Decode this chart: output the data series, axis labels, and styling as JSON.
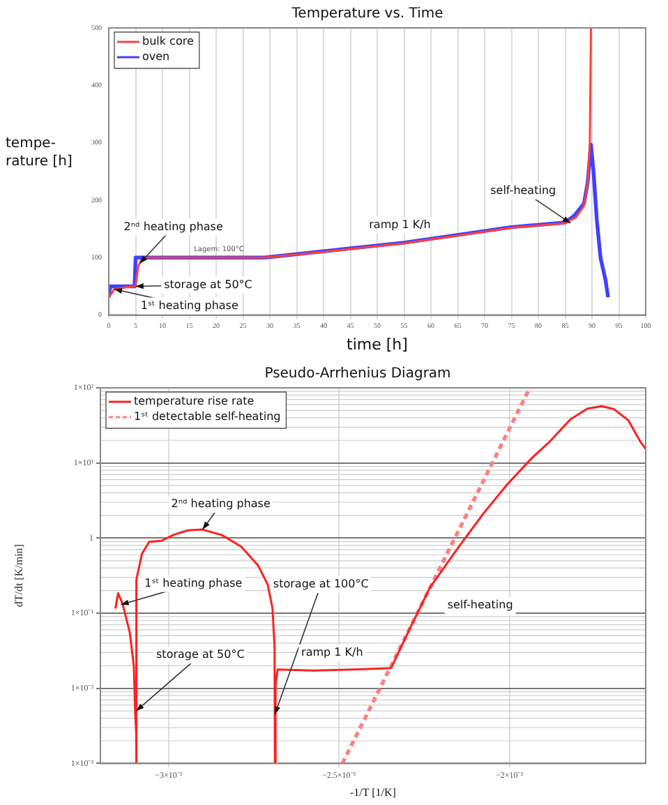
{
  "chart_data": [
    {
      "type": "line",
      "title": "Temperature vs. Time",
      "xlabel": "time [h]",
      "ylabel": "tempe-\nrature [h]",
      "xlim": [
        0,
        100
      ],
      "xticks": [
        0,
        5,
        10,
        15,
        20,
        25,
        30,
        35,
        40,
        45,
        50,
        55,
        60,
        65,
        70,
        75,
        80,
        85,
        90,
        95,
        100
      ],
      "ylim": [
        0,
        500
      ],
      "yticks": [
        0,
        100,
        200,
        300,
        400,
        500
      ],
      "grid": "x",
      "legend": "top left",
      "marker": "none",
      "series": [
        {
          "name": "bulk core",
          "color": "#ff4040",
          "x": [
            0,
            1,
            3,
            4.8,
            5,
            5.5,
            6,
            7,
            29,
            40,
            55,
            75,
            85,
            87,
            88.5,
            89.2,
            89.6,
            89.8
          ],
          "values": [
            30,
            45,
            48,
            50,
            50,
            85,
            95,
            100,
            100,
            110,
            125,
            152,
            160,
            170,
            190,
            230,
            300,
            500
          ]
        },
        {
          "name": "oven",
          "color": "#4040ff",
          "x": [
            0,
            0.3,
            4.8,
            5,
            29,
            40,
            55,
            75,
            85,
            86.7,
            88.5,
            89.2,
            89.8,
            90.3,
            90.9,
            91.6,
            92.5,
            93
          ],
          "values": [
            35,
            50,
            50,
            100,
            100,
            111,
            126,
            153,
            161,
            173,
            194,
            231,
            297,
            248,
            165,
            99,
            62,
            31
          ]
        }
      ],
      "annotations": [
        {
          "text": "Lagem: 100°C",
          "x": 20,
          "y": 100
        },
        {
          "text": "2ⁿᵈ heating phase",
          "x": 5.8,
          "y": 90
        },
        {
          "text": "storage at 50°C",
          "x": 5,
          "y": 50
        },
        {
          "text": "1ˢᵗ heating phase",
          "x": 1,
          "y": 45
        },
        {
          "text": "ramp 1 K/h",
          "x": 55,
          "y": 125
        },
        {
          "text": "self-heating",
          "x": 86,
          "y": 160
        }
      ]
    },
    {
      "type": "line",
      "title": "Pseudo-Arrhenius Diagram",
      "xlabel": "-1/T [1/K]",
      "ylabel": "dT/dt [K/min]",
      "log": "y",
      "xlim": [
        -0.0032,
        -0.0016
      ],
      "xticks": [
        {
          "value": -0.003,
          "label": "−3×10⁻³"
        },
        {
          "value": -0.0025,
          "label": "−2.5×10⁻³"
        },
        {
          "value": -0.002,
          "label": "−2×10⁻³"
        }
      ],
      "ylim": [
        0.001,
        100
      ],
      "yticks": [
        {
          "value": 0.001,
          "label": "1×10⁻³"
        },
        {
          "value": 0.01,
          "label": "1×10⁻²"
        },
        {
          "value": 0.1,
          "label": "1×10⁻¹"
        },
        1,
        {
          "value": 10,
          "label": "1×10¹"
        },
        {
          "value": 100,
          "label": "1×10²"
        }
      ],
      "grid": true,
      "legend": "top left",
      "marker": "none",
      "series": [
        {
          "name": "temperature rise rate",
          "color": "#ff2020",
          "x": [
            -0.003156,
            -0.003148,
            -0.003135,
            -0.003114,
            -0.003102,
            -0.003098,
            -0.003095,
            -0.003095,
            -0.003094,
            -0.003078,
            -0.003057,
            -0.003021,
            -0.002986,
            -0.002943,
            -0.002901,
            -0.002844,
            -0.002787,
            -0.002737,
            -0.002709,
            -0.002695,
            -0.002689,
            -0.002688,
            -0.002686,
            -0.00268,
            -0.002574,
            -0.00246,
            -0.002347,
            -0.00229,
            -0.002233,
            -0.002148,
            -0.002077,
            -0.002006,
            -0.001935,
            -0.001885,
            -0.001821,
            -0.001771,
            -0.001729,
            -0.001693,
            -0.001651,
            -0.001615,
            -0.0016
          ],
          "values": [
            0.115,
            0.184,
            0.134,
            0.056,
            0.02,
            0.0046,
            0.0026,
            0.001,
            0.28,
            0.62,
            0.89,
            0.92,
            1.1,
            1.27,
            1.3,
            1.1,
            0.77,
            0.43,
            0.24,
            0.115,
            0.036,
            0.001,
            0.011,
            0.0178,
            0.0172,
            0.0178,
            0.0186,
            0.065,
            0.22,
            0.77,
            2.1,
            5.2,
            11.5,
            18.6,
            38,
            53,
            57,
            52,
            37,
            19,
            15.4
          ]
        },
        {
          "name": "1ˢᵗ detectable self-heating",
          "color": "#ff8080",
          "line_style": "dashed",
          "x": [
            -0.00249,
            -0.00194
          ],
          "values": [
            0.001,
            100
          ]
        }
      ],
      "annotations": [
        {
          "text": "2ⁿᵈ heating phase",
          "x": -0.0029,
          "y": 1.3
        },
        {
          "text": "1ˢᵗ heating phase",
          "x": -0.00314,
          "y": 0.13
        },
        {
          "text": "storage at 50°C",
          "x": -0.003095,
          "y": 0.005
        },
        {
          "text": "storage at 100°C",
          "x": -0.002688,
          "y": 0.0045
        },
        {
          "text": "ramp 1 K/h",
          "x": -0.00252,
          "y": 0.0177
        },
        {
          "text": "self-heating",
          "x": -0.002233,
          "y": 0.22
        }
      ]
    }
  ]
}
